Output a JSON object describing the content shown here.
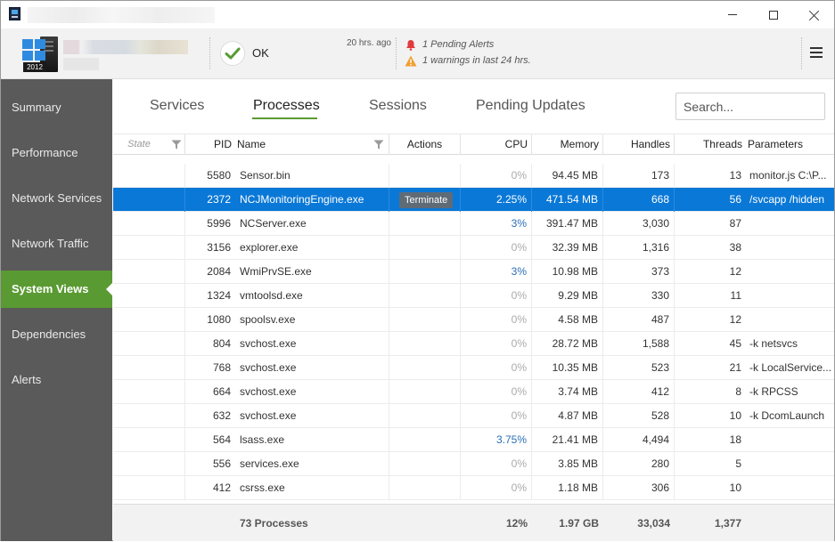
{
  "header": {
    "status_label": "OK",
    "time_ago": "20 hrs. ago",
    "server_year": "2012",
    "alerts": [
      {
        "icon": "bell-icon",
        "text": "1 Pending Alerts",
        "color": "#e0393e"
      },
      {
        "icon": "warning-icon",
        "text": "1 warnings in last 24 hrs.",
        "color": "#f0a030"
      }
    ]
  },
  "sidebar": {
    "items": [
      {
        "label": "Summary",
        "name": "summary"
      },
      {
        "label": "Performance",
        "name": "performance"
      },
      {
        "label": "Network Services",
        "name": "network-services"
      },
      {
        "label": "Network Traffic",
        "name": "network-traffic"
      },
      {
        "label": "System Views",
        "name": "system-views",
        "active": true
      },
      {
        "label": "Dependencies",
        "name": "dependencies"
      },
      {
        "label": "Alerts",
        "name": "alerts"
      }
    ]
  },
  "tabs": {
    "items": [
      "Services",
      "Processes",
      "Sessions",
      "Pending Updates"
    ],
    "active": "Processes"
  },
  "search": {
    "placeholder": "Search..."
  },
  "table": {
    "columns": {
      "state": "State",
      "pid": "PID",
      "name": "Name",
      "actions": "Actions",
      "cpu": "CPU",
      "memory": "Memory",
      "handles": "Handles",
      "threads": "Threads",
      "parameters": "Parameters"
    },
    "terminate_label": "Terminate",
    "rows": [
      {
        "pid": "5580",
        "name": "Sensor.bin",
        "cpu": "0%",
        "memory": "94.45 MB",
        "handles": "173",
        "threads": "13",
        "parameters": "monitor.js C:\\P..."
      },
      {
        "pid": "2372",
        "name": "NCJMonitoringEngine.exe",
        "cpu": "2.25%",
        "memory": "471.54 MB",
        "handles": "668",
        "threads": "56",
        "parameters": "/svcapp /hidden",
        "selected": true
      },
      {
        "pid": "5996",
        "name": "NCServer.exe",
        "cpu": "3%",
        "memory": "391.47 MB",
        "handles": "3,030",
        "threads": "87",
        "parameters": ""
      },
      {
        "pid": "3156",
        "name": "explorer.exe",
        "cpu": "0%",
        "memory": "32.39 MB",
        "handles": "1,316",
        "threads": "38",
        "parameters": ""
      },
      {
        "pid": "2084",
        "name": "WmiPrvSE.exe",
        "cpu": "3%",
        "memory": "10.98 MB",
        "handles": "373",
        "threads": "12",
        "parameters": ""
      },
      {
        "pid": "1324",
        "name": "vmtoolsd.exe",
        "cpu": "0%",
        "memory": "9.29 MB",
        "handles": "330",
        "threads": "11",
        "parameters": ""
      },
      {
        "pid": "1080",
        "name": "spoolsv.exe",
        "cpu": "0%",
        "memory": "4.58 MB",
        "handles": "487",
        "threads": "12",
        "parameters": ""
      },
      {
        "pid": "804",
        "name": "svchost.exe",
        "cpu": "0%",
        "memory": "28.72 MB",
        "handles": "1,588",
        "threads": "45",
        "parameters": "-k netsvcs"
      },
      {
        "pid": "768",
        "name": "svchost.exe",
        "cpu": "0%",
        "memory": "10.35 MB",
        "handles": "523",
        "threads": "21",
        "parameters": "-k LocalService..."
      },
      {
        "pid": "664",
        "name": "svchost.exe",
        "cpu": "0%",
        "memory": "3.74 MB",
        "handles": "412",
        "threads": "8",
        "parameters": "-k RPCSS"
      },
      {
        "pid": "632",
        "name": "svchost.exe",
        "cpu": "0%",
        "memory": "4.87 MB",
        "handles": "528",
        "threads": "10",
        "parameters": "-k DcomLaunch"
      },
      {
        "pid": "564",
        "name": "lsass.exe",
        "cpu": "3.75%",
        "memory": "21.41 MB",
        "handles": "4,494",
        "threads": "18",
        "parameters": ""
      },
      {
        "pid": "556",
        "name": "services.exe",
        "cpu": "0%",
        "memory": "3.85 MB",
        "handles": "280",
        "threads": "5",
        "parameters": ""
      },
      {
        "pid": "412",
        "name": "csrss.exe",
        "cpu": "0%",
        "memory": "1.18 MB",
        "handles": "306",
        "threads": "10",
        "parameters": ""
      }
    ],
    "footer": {
      "processes": "73 Processes",
      "cpu": "12%",
      "memory": "1.97 GB",
      "handles": "33,034",
      "threads": "1,377"
    }
  },
  "colors": {
    "accent_green": "#5a9a32",
    "selection_blue": "#0a78d7",
    "sidebar_bg": "#5a5a5a"
  }
}
